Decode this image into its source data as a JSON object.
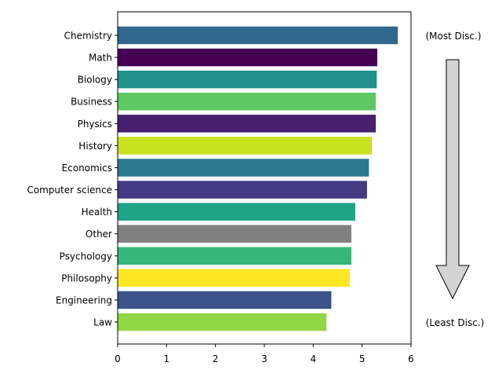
{
  "chart_data": {
    "type": "bar",
    "orientation": "horizontal",
    "title": "",
    "xlabel": "",
    "ylabel": "",
    "xlim": [
      0,
      6
    ],
    "xticks": [
      0,
      1,
      2,
      3,
      4,
      5,
      6
    ],
    "grid": false,
    "legend": null,
    "categories": [
      "Chemistry",
      "Math",
      "Biology",
      "Business",
      "Physics",
      "History",
      "Economics",
      "Computer science",
      "Health",
      "Other",
      "Psychology",
      "Philosophy",
      "Engineering",
      "Law"
    ],
    "values": [
      5.73,
      5.31,
      5.3,
      5.28,
      5.28,
      5.2,
      5.14,
      5.1,
      4.86,
      4.78,
      4.78,
      4.75,
      4.37,
      4.27
    ],
    "colors": [
      "#31688e",
      "#440154",
      "#21918c",
      "#5ec962",
      "#481f70",
      "#cae11f",
      "#2a788e",
      "#443983",
      "#20a486",
      "#808080",
      "#35b779",
      "#fde725",
      "#3b528b",
      "#90d743"
    ],
    "annotations": [
      {
        "text": "(Most Disc.)",
        "position": "top-right"
      },
      {
        "text": "(Least Disc.)",
        "position": "bottom-right"
      },
      {
        "shape": "downward-arrow",
        "fill": "#d3d3d3",
        "stroke": "#000000"
      }
    ]
  },
  "annotations": {
    "top_label": "(Most Disc.)",
    "bottom_label": "(Least Disc.)"
  }
}
